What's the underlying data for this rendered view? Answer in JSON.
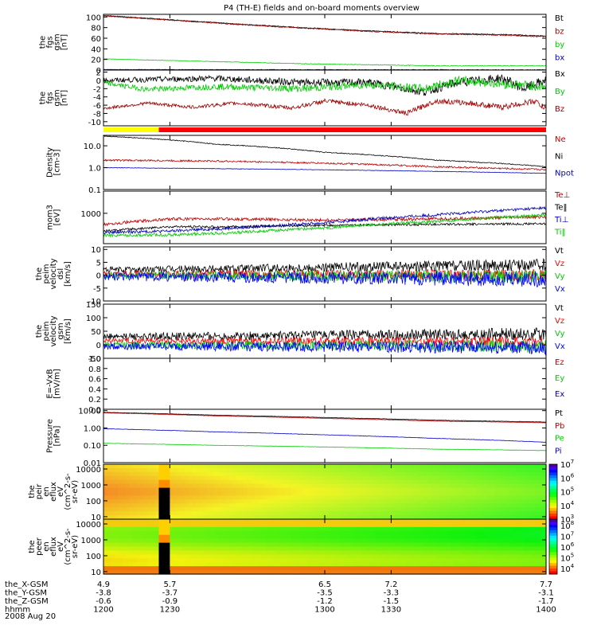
{
  "title": "P4 (TH-E) fields and on-board moments overview",
  "chart_data": {
    "type": "line",
    "x_range": [
      1200,
      1400
    ],
    "panels": [
      {
        "id": "fgs_gsm_mag",
        "ylabel": [
          "the",
          "fgs",
          "gsm",
          "[nT]"
        ],
        "scale": "linear",
        "ylim": [
          0,
          105
        ],
        "ticks": [
          0,
          20,
          40,
          60,
          80,
          100
        ],
        "series": [
          {
            "name": "Bt",
            "color": "#000000",
            "trend": [
              [
                1200,
                103
              ],
              [
                1230,
                95
              ],
              [
                1260,
                87
              ],
              [
                1290,
                80
              ],
              [
                1320,
                74
              ],
              [
                1350,
                69
              ],
              [
                1380,
                67
              ],
              [
                1400,
                64
              ]
            ],
            "noise": 0.5
          },
          {
            "name": "bz",
            "color": "#a00000",
            "trend": [
              [
                1200,
                102
              ],
              [
                1230,
                94
              ],
              [
                1260,
                86
              ],
              [
                1290,
                79
              ],
              [
                1320,
                73
              ],
              [
                1350,
                68
              ],
              [
                1380,
                66
              ],
              [
                1400,
                63
              ]
            ],
            "noise": 0.6
          },
          {
            "name": "by",
            "color": "#00cc00",
            "trend": [
              [
                1200,
                21
              ],
              [
                1230,
                18
              ],
              [
                1260,
                15
              ],
              [
                1290,
                12
              ],
              [
                1320,
                10
              ],
              [
                1350,
                8
              ],
              [
                1380,
                8
              ],
              [
                1400,
                8
              ]
            ],
            "noise": 0.4
          },
          {
            "name": "bx",
            "color": "#0000c0",
            "trend": [
              [
                1200,
                1
              ],
              [
                1400,
                0.5
              ]
            ],
            "noise": 0.3
          }
        ]
      },
      {
        "id": "fgs_gsm_comp",
        "ylabel": [
          "the",
          "fgs",
          "gsm",
          "[nT]"
        ],
        "scale": "linear",
        "ylim": [
          -11,
          2.5
        ],
        "ticks": [
          2,
          0,
          -2,
          -4,
          -6,
          -8,
          -10
        ],
        "series": [
          {
            "name": "Bx",
            "color": "#000000",
            "trend": [
              [
                1200,
                0
              ],
              [
                1250,
                0.5
              ],
              [
                1290,
                -0.5
              ],
              [
                1320,
                -0.5
              ],
              [
                1345,
                -2.8
              ],
              [
                1360,
                -0.5
              ],
              [
                1380,
                0.5
              ],
              [
                1390,
                -2
              ],
              [
                1400,
                0
              ]
            ],
            "noise": 0.6
          },
          {
            "name": "By",
            "color": "#00cc00",
            "trend": [
              [
                1200,
                -0.6
              ],
              [
                1220,
                -2.2
              ],
              [
                1250,
                -1.5
              ],
              [
                1290,
                -2
              ],
              [
                1320,
                -1
              ],
              [
                1345,
                -2
              ],
              [
                1360,
                0
              ],
              [
                1385,
                -1
              ],
              [
                1400,
                -1.5
              ]
            ],
            "noise": 0.6
          },
          {
            "name": "Bz",
            "color": "#a00000",
            "trend": [
              [
                1200,
                -6.8
              ],
              [
                1220,
                -5.5
              ],
              [
                1240,
                -6.5
              ],
              [
                1260,
                -5.5
              ],
              [
                1285,
                -6.7
              ],
              [
                1300,
                -5
              ],
              [
                1320,
                -6
              ],
              [
                1337,
                -8
              ],
              [
                1350,
                -5
              ],
              [
                1365,
                -5.5
              ],
              [
                1380,
                -6.5
              ],
              [
                1395,
                -5
              ],
              [
                1400,
                -7
              ]
            ],
            "noise": 0.35
          }
        ]
      },
      {
        "id": "density",
        "ylabel": [
          "Density",
          "[cm-3]"
        ],
        "scale": "log",
        "ylim": [
          0.1,
          30
        ],
        "ticks": [
          0.1,
          1.0,
          10.0
        ],
        "tick_labels": [
          "0.1",
          "1.0",
          "10.0"
        ],
        "series": [
          {
            "name": "Ne",
            "color": "#c00000",
            "trend": [
              [
                1200,
                2.2
              ],
              [
                1250,
                2.0
              ],
              [
                1300,
                1.6
              ],
              [
                1350,
                1.1
              ],
              [
                1400,
                0.8
              ]
            ],
            "noise": 0.04
          },
          {
            "name": "Ni",
            "color": "#000000",
            "trend": [
              [
                1200,
                28
              ],
              [
                1250,
                12
              ],
              [
                1300,
                5
              ],
              [
                1350,
                2.2
              ],
              [
                1400,
                1.1
              ]
            ],
            "noise": 0.02
          },
          {
            "name": "Npot",
            "color": "#0000c0",
            "trend": [
              [
                1200,
                1.0
              ],
              [
                1300,
                0.8
              ],
              [
                1400,
                0.55
              ]
            ],
            "noise": 0.01
          }
        ]
      },
      {
        "id": "temperature",
        "ylabel": [
          "mom3",
          "[eV]"
        ],
        "scale": "log",
        "ylim": [
          150,
          4000
        ],
        "ticks": [
          1000
        ],
        "tick_labels": [
          "1000"
        ],
        "series": [
          {
            "name": "Te⊥",
            "color": "#c00000",
            "trend": [
              [
                1200,
                500
              ],
              [
                1230,
                700
              ],
              [
                1260,
                700
              ],
              [
                1300,
                650
              ],
              [
                1350,
                700
              ],
              [
                1400,
                800
              ]
            ],
            "noise": 0.04
          },
          {
            "name": "Te‖",
            "color": "#000000",
            "trend": [
              [
                1200,
                330
              ],
              [
                1230,
                430
              ],
              [
                1260,
                430
              ],
              [
                1300,
                470
              ],
              [
                1350,
                500
              ],
              [
                1400,
                520
              ]
            ],
            "noise": 0.03
          },
          {
            "name": "Ti⊥",
            "color": "#0000c0",
            "trend": [
              [
                1200,
                300
              ],
              [
                1230,
                330
              ],
              [
                1260,
                400
              ],
              [
                1300,
                550
              ],
              [
                1350,
                900
              ],
              [
                1400,
                1400
              ]
            ],
            "noise": 0.04
          },
          {
            "name": "Ti‖",
            "color": "#00cc00",
            "trend": [
              [
                1200,
                250
              ],
              [
                1230,
                260
              ],
              [
                1260,
                300
              ],
              [
                1300,
                400
              ],
              [
                1350,
                600
              ],
              [
                1400,
                900
              ]
            ],
            "noise": 0.04
          }
        ]
      },
      {
        "id": "peim_velocity_dsl",
        "ylabel": [
          "the",
          "peim",
          "velocity",
          "dsl",
          "[km/s]"
        ],
        "scale": "linear",
        "ylim": [
          -10,
          11
        ],
        "ticks": [
          10,
          5,
          0,
          -5,
          -10
        ],
        "series": [
          {
            "name": "Vt",
            "color": "#000000",
            "trend": [
              [
                1200,
                2
              ],
              [
                1400,
                4
              ]
            ],
            "noise": 1.2
          },
          {
            "name": "Vz",
            "color": "#ff0000",
            "trend": [
              [
                1200,
                0.5
              ],
              [
                1400,
                0
              ]
            ],
            "noise": 1.2
          },
          {
            "name": "Vy",
            "color": "#00cc00",
            "trend": [
              [
                1200,
                0
              ],
              [
                1400,
                -0.5
              ]
            ],
            "noise": 1.4
          },
          {
            "name": "Vx",
            "color": "#0000ff",
            "trend": [
              [
                1200,
                -0.5
              ],
              [
                1400,
                -1.5
              ]
            ],
            "noise": 1.6
          }
        ]
      },
      {
        "id": "peim_velocity_gsm",
        "ylabel": [
          "the",
          "peim",
          "velocity",
          "gsm",
          "[km/s]"
        ],
        "scale": "linear",
        "ylim": [
          -50,
          150
        ],
        "ticks": [
          150,
          100,
          50,
          0,
          -50
        ],
        "series": [
          {
            "name": "Vt",
            "color": "#000000",
            "trend": [
              [
                1200,
                30
              ],
              [
                1400,
                40
              ]
            ],
            "noise": 12
          },
          {
            "name": "Vz",
            "color": "#ff0000",
            "trend": [
              [
                1200,
                15
              ],
              [
                1400,
                10
              ]
            ],
            "noise": 10
          },
          {
            "name": "Vy",
            "color": "#00cc00",
            "trend": [
              [
                1200,
                0
              ],
              [
                1400,
                -5
              ]
            ],
            "noise": 12
          },
          {
            "name": "Vx",
            "color": "#0000ff",
            "trend": [
              [
                1200,
                -5
              ],
              [
                1400,
                -10
              ]
            ],
            "noise": 13
          }
        ]
      },
      {
        "id": "e_field",
        "ylabel": [
          "E=-VxB",
          "[mV/m]"
        ],
        "scale": "linear",
        "ylim": [
          0,
          1
        ],
        "ticks": [
          0.0,
          0.2,
          0.4,
          0.6,
          0.8,
          1.0
        ],
        "tick_labels": [
          "0.0",
          "0.2",
          "0.4",
          "0.6",
          "0.8",
          "1.0"
        ],
        "series": [
          {
            "name": "Ez",
            "color": "#c00000"
          },
          {
            "name": "Ey",
            "color": "#00cc00"
          },
          {
            "name": "Ex",
            "color": "#0000c0"
          }
        ]
      },
      {
        "id": "pressure",
        "ylabel": [
          "Pressure",
          "[nPa]"
        ],
        "scale": "log",
        "ylim": [
          0.01,
          12
        ],
        "ticks": [
          0.01,
          0.1,
          1.0,
          10.0
        ],
        "tick_labels": [
          "0.01",
          "0.10",
          "1.00",
          "10.00"
        ],
        "series": [
          {
            "name": "Pt",
            "color": "#000000",
            "trend": [
              [
                1200,
                8
              ],
              [
                1250,
                5.5
              ],
              [
                1300,
                4
              ],
              [
                1350,
                2.8
              ],
              [
                1400,
                2.2
              ]
            ],
            "noise": 0.01
          },
          {
            "name": "Pb",
            "color": "#c00000",
            "trend": [
              [
                1200,
                7.5
              ],
              [
                1250,
                5
              ],
              [
                1300,
                3.6
              ],
              [
                1350,
                2.5
              ],
              [
                1400,
                2.0
              ]
            ],
            "noise": 0.01
          },
          {
            "name": "Pe",
            "color": "#00cc00",
            "trend": [
              [
                1200,
                0.13
              ],
              [
                1250,
                0.1
              ],
              [
                1300,
                0.08
              ],
              [
                1350,
                0.06
              ],
              [
                1400,
                0.05
              ]
            ],
            "noise": 0.01
          },
          {
            "name": "Pi",
            "color": "#0000c0",
            "trend": [
              [
                1200,
                0.9
              ],
              [
                1250,
                0.6
              ],
              [
                1300,
                0.4
              ],
              [
                1350,
                0.25
              ],
              [
                1400,
                0.15
              ]
            ],
            "noise": 0.01
          }
        ]
      },
      {
        "id": "peir_spec",
        "type": "heatmap",
        "ylabel": [
          "the",
          "peir",
          "en",
          "eflux",
          "eV",
          "(cm^2-s-",
          "sr-eV)"
        ],
        "scale": "log",
        "ylim": [
          7,
          20000
        ],
        "ticks": [
          10,
          100,
          1000,
          10000
        ],
        "tick_labels": [
          "10",
          "100",
          "1000",
          "10000"
        ],
        "colorbar": {
          "range_exp": [
            3,
            7
          ],
          "tick_exps": [
            3,
            4,
            5,
            6,
            7
          ]
        },
        "gap": [
          1225,
          1229
        ]
      },
      {
        "id": "peer_spec",
        "type": "heatmap",
        "ylabel": [
          "the",
          "peer",
          "en",
          "eflux",
          "eV",
          "(cm^2-s-",
          "sr-eV)"
        ],
        "scale": "log",
        "ylim": [
          7,
          20000
        ],
        "ticks": [
          10,
          100,
          1000,
          10000
        ],
        "tick_labels": [
          "10",
          "100",
          "1000",
          "10000"
        ],
        "colorbar": {
          "range_exp": [
            3.5,
            8.6
          ],
          "tick_exps": [
            4,
            5,
            6,
            7,
            8
          ]
        },
        "gap": [
          1225,
          1229
        ]
      }
    ],
    "quality_bar": [
      {
        "from": 1200,
        "to": 1225,
        "color": "#ffff00"
      },
      {
        "from": 1225,
        "to": 1400,
        "color": "#ff0000"
      }
    ],
    "x_axis_rows": [
      {
        "label": "the_X-GSM",
        "values": [
          "4.9",
          "5.7",
          "6.5",
          "7.2",
          "7.7"
        ]
      },
      {
        "label": "the_Y-GSM",
        "values": [
          "-3.8",
          "-3.7",
          "-3.5",
          "-3.3",
          "-3.1"
        ]
      },
      {
        "label": "the_Z-GSM",
        "values": [
          "-0.6",
          "-0.9",
          "-1.2",
          "-1.5",
          "-1.7"
        ]
      },
      {
        "label": "hhmm",
        "values": [
          "1200",
          "1230",
          "1300",
          "1330",
          "1400"
        ]
      }
    ],
    "x_ticks": [
      1200,
      1230,
      1300,
      1330,
      1400
    ],
    "date": "2008 Aug 20"
  }
}
